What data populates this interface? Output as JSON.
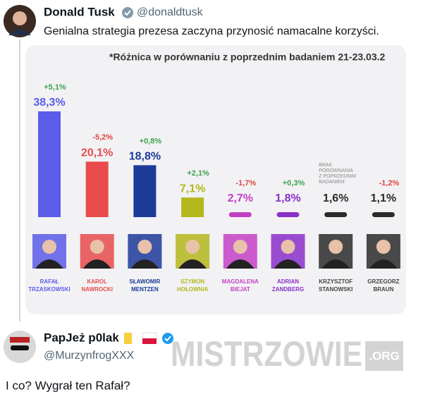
{
  "tweet": {
    "author": "Donald Tusk",
    "handle": "@donaldtusk",
    "text": "Genialna strategia prezesa zaczyna przynosić namacalne korzyści."
  },
  "chart_data": {
    "type": "bar",
    "title": "*Różnica w porównaniu z poprzednim badaniem 21-23.03.2",
    "categories": [
      [
        "RAFAŁ",
        "TRZASKOWSKI"
      ],
      [
        "KAROL",
        "NAWROCKI"
      ],
      [
        "SŁAWOMIR",
        "MENTZEN"
      ],
      [
        "SZYMON",
        "HOŁOWNIA"
      ],
      [
        "MAGDALENA",
        "BIEJAT"
      ],
      [
        "ADRIAN",
        "ZANDBERG"
      ],
      [
        "KRZYSZTOF",
        "STANOWSKI"
      ],
      [
        "GRZEGORZ",
        "BRAUN"
      ]
    ],
    "values": [
      38.3,
      20.1,
      18.8,
      7.1,
      2.7,
      1.8,
      1.6,
      1.1
    ],
    "value_labels": [
      "38,3%",
      "20,1%",
      "18,8%",
      "7,1%",
      "2,7%",
      "1,8%",
      "1,6%",
      "1,1%"
    ],
    "changes": [
      5.1,
      -5.2,
      0.8,
      2.1,
      -1.7,
      0.3,
      null,
      -1.2
    ],
    "change_labels": [
      "+5,1%",
      "-5,2%",
      "+0,8%",
      "+2,1%",
      "-1,7%",
      "+0,3%",
      null,
      "-1,2%"
    ],
    "no_change_note": [
      "BRAK",
      "PORÓWNANIA",
      "Z POPRZEDNIM",
      "BADANIEM"
    ],
    "colors": [
      "#5b5ce8",
      "#e84b4b",
      "#1c3a98",
      "#b3b71c",
      "#c43fc6",
      "#8a2fc9",
      "#2b2b2b",
      "#2b2b2b"
    ]
  },
  "reply": {
    "author": "PapJeż p0lak",
    "handle": "@MurzynfrogXXX",
    "text": "I co? Wygrał ten Rafał?"
  },
  "watermark": "MISTRZOWIE",
  "watermark_suffix": ".ORG"
}
